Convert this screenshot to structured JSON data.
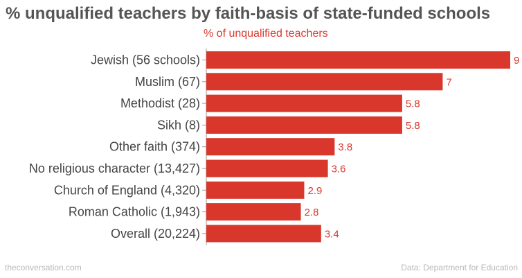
{
  "header": {
    "title": "% unqualified teachers by faith-basis of state-funded schools",
    "subtitle": "% of unqualified teachers"
  },
  "footer": {
    "source_site": "theconversation.com",
    "data_source": "Data: Department for Education"
  },
  "colors": {
    "bar": "#d9372b",
    "label_text": "#444444",
    "title_text": "#555555",
    "footer_text": "#b8b8b8"
  },
  "chart_data": {
    "type": "bar",
    "orientation": "horizontal",
    "title": "% unqualified teachers by faith-basis of state-funded schools",
    "subtitle": "% of unqualified teachers",
    "categories": [
      "Jewish (56 schools)",
      "Muslim (67)",
      "Methodist  (28)",
      "Sikh (8)",
      "Other faith (374)",
      "No religious character (13,427)",
      "Church of England (4,320)",
      "Roman Catholic (1,943)",
      "Overall (20,224)"
    ],
    "values": [
      9,
      7,
      5.8,
      5.8,
      3.8,
      3.6,
      2.9,
      2.8,
      3.4
    ],
    "value_labels": [
      "9",
      "7",
      "5.8",
      "5.8",
      "3.8",
      "3.6",
      "2.9",
      "2.8",
      "3.4"
    ],
    "xlim": [
      0,
      9
    ],
    "grid": false,
    "legend": "none"
  }
}
